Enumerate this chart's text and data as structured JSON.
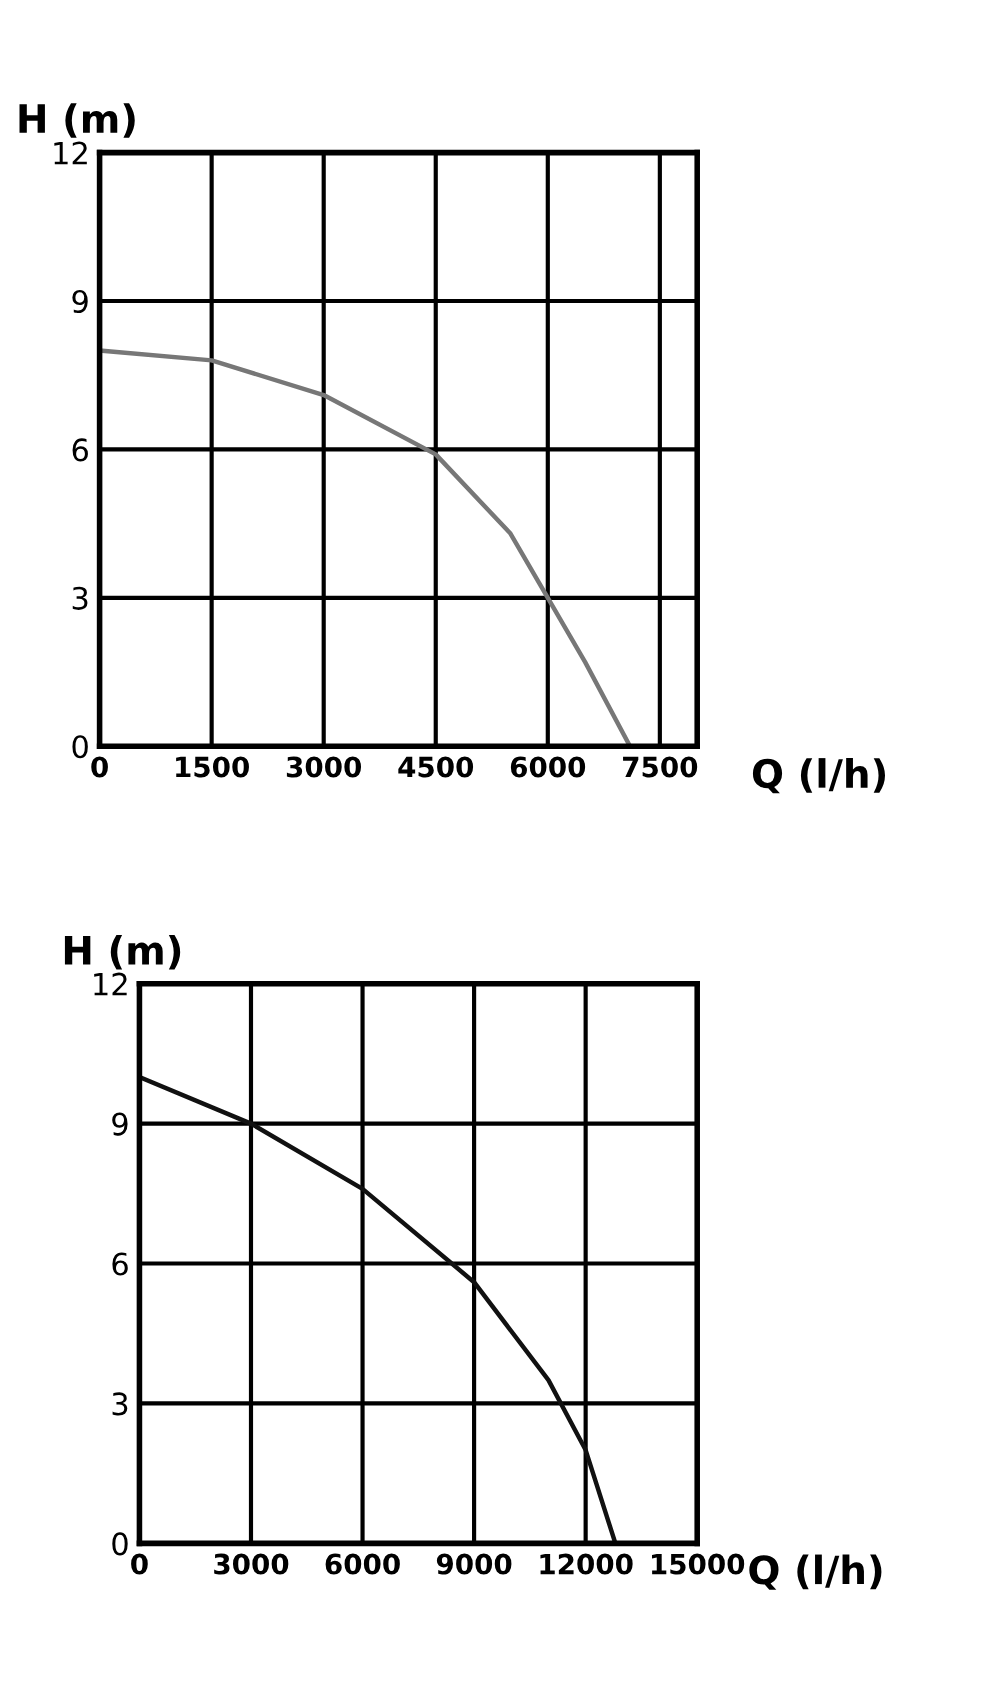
{
  "chart_data": [
    {
      "type": "line",
      "xlabel": "Q (l/h)",
      "ylabel": "H (m)",
      "xlim": [
        0,
        8000
      ],
      "ylim": [
        0,
        12
      ],
      "xticks": [
        0,
        1500,
        3000,
        4500,
        6000,
        7500
      ],
      "yticks": [
        0,
        3,
        6,
        9,
        12
      ],
      "grid": true,
      "marker": "none",
      "line_style": "solid",
      "series": [
        {
          "color": "#777777",
          "x": [
            0,
            1500,
            3000,
            4500,
            5500,
            6000,
            6500,
            7100
          ],
          "values": [
            8,
            7.8,
            7.1,
            5.9,
            4.3,
            3.0,
            1.7,
            0
          ]
        }
      ]
    },
    {
      "type": "line",
      "xlabel": "Q (l/h)",
      "ylabel": "H (m)",
      "xlim": [
        0,
        15000
      ],
      "ylim": [
        0,
        12
      ],
      "xticks": [
        0,
        3000,
        6000,
        9000,
        12000,
        15000
      ],
      "yticks": [
        0,
        3,
        6,
        9,
        12
      ],
      "grid": true,
      "marker": "none",
      "line_style": "solid",
      "series": [
        {
          "color": "#111111",
          "x": [
            0,
            3000,
            6000,
            9000,
            11000,
            12000,
            12800
          ],
          "values": [
            10,
            9.0,
            7.6,
            5.6,
            3.5,
            2.0,
            0
          ]
        }
      ]
    }
  ]
}
